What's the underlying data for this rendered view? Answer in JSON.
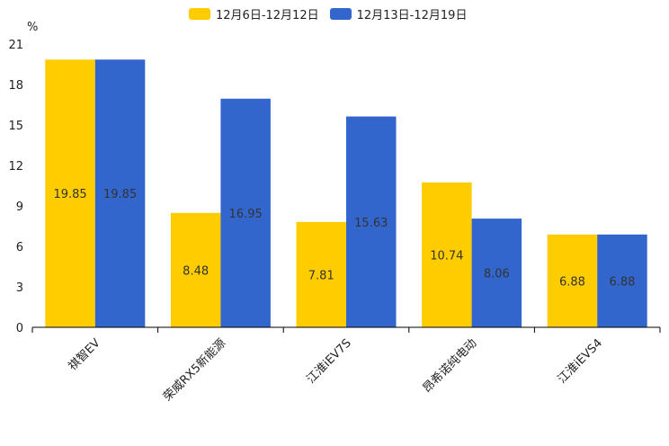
{
  "chart_data": {
    "type": "bar",
    "title": "",
    "ylabel": "%",
    "xlabel": "",
    "ylim": [
      0,
      21
    ],
    "yticks": [
      0,
      3,
      6,
      9,
      12,
      15,
      18,
      21
    ],
    "categories": [
      "祺智EV",
      "荣威RX5新能源",
      "江淮iEV7S",
      "昂希诺纯电动",
      "江淮iEVS4"
    ],
    "series": [
      {
        "name": "12月6日-12月12日",
        "color": "#FFCC00",
        "values": [
          19.85,
          8.48,
          7.81,
          10.74,
          6.88
        ]
      },
      {
        "name": "12月13日-12月19日",
        "color": "#3366CC",
        "values": [
          19.85,
          16.95,
          15.63,
          8.06,
          6.88
        ]
      }
    ],
    "legend_position": "top"
  }
}
